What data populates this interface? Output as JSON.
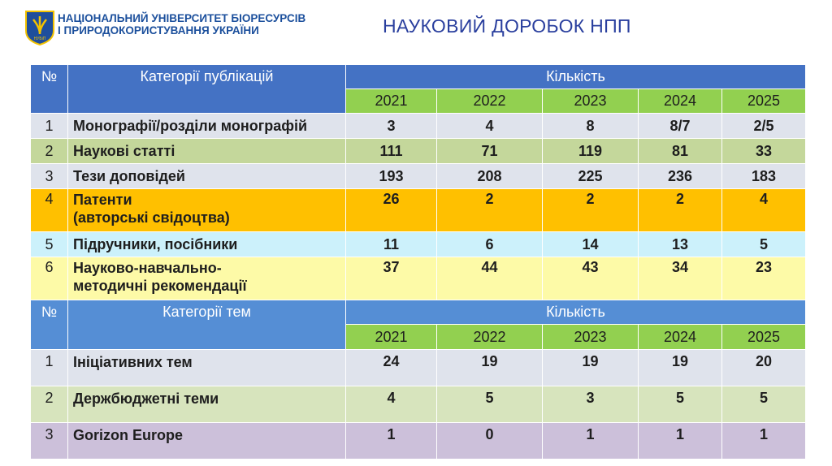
{
  "header": {
    "org_line1": "НАЦІОНАЛЬНИЙ УНІВЕРСИТЕТ БІОРЕСУРСІВ",
    "org_line2": "І ПРИРОДОКОРИСТУВАННЯ УКРАЇНИ",
    "logo_text": "НУБіП",
    "title": "НАУКОВИЙ ДОРОБОК НПП"
  },
  "colors": {
    "header_blue": "#4472c4",
    "year_green": "#92d050",
    "title_blue": "#2a3f9e"
  },
  "publications": {
    "num_header": "№",
    "category_header": "Категорії публікацій",
    "count_header": "Кількість",
    "years": [
      "2021",
      "2022",
      "2023",
      "2024",
      "2025"
    ],
    "rows": [
      {
        "n": "1",
        "name": "Монографії/розділи монографій",
        "v": [
          "3",
          "4",
          "8",
          "8/7",
          "2/5"
        ]
      },
      {
        "n": "2",
        "name": "Наукові статті",
        "v": [
          "111",
          "71",
          "119",
          "81",
          "33"
        ]
      },
      {
        "n": "3",
        "name": "Тези доповідей",
        "v": [
          "193",
          "208",
          "225",
          "236",
          "183"
        ]
      },
      {
        "n": "4",
        "name1": "Патенти",
        "name2": "(авторські свідоцтва)",
        "v": [
          "26",
          "2",
          "2",
          "2",
          "4"
        ]
      },
      {
        "n": "5",
        "name": "Підручники, посібники",
        "v": [
          "11",
          "6",
          "14",
          "13",
          "5"
        ]
      },
      {
        "n": "6",
        "name1": "Науково-навчально-",
        "name2": "методичні рекомендації",
        "v": [
          "37",
          "44",
          "43",
          "34",
          "23"
        ]
      }
    ]
  },
  "topics": {
    "num_header": "№",
    "category_header": "Категорії тем",
    "count_header": "Кількість",
    "years": [
      "2021",
      "2022",
      "2023",
      "2024",
      "2025"
    ],
    "rows": [
      {
        "n": "1",
        "name": "Ініціативних тем",
        "v": [
          "24",
          "19",
          "19",
          "19",
          "20"
        ]
      },
      {
        "n": "2",
        "name": "Держбюджетні теми",
        "v": [
          "4",
          "5",
          "3",
          "5",
          "5"
        ]
      },
      {
        "n": "3",
        "name": "Gorizon Europe",
        "v": [
          "1",
          "0",
          "1",
          "1",
          "1"
        ]
      }
    ]
  }
}
